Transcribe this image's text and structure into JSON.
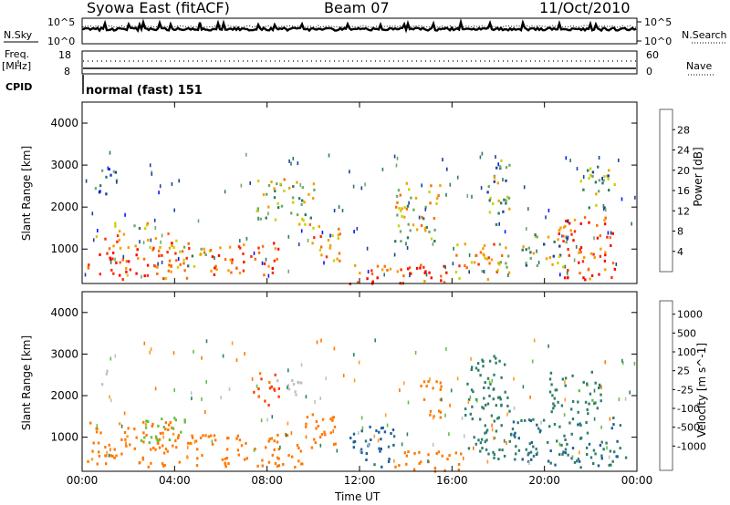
{
  "header": {
    "station": "Syowa East (fitACF)",
    "beam": "Beam 07",
    "date": "11/Oct/2010"
  },
  "top_panels": {
    "nsky_label": "N.Sky",
    "nsearch_label": "N.Search",
    "log_top_label": "10^5",
    "log_bottom_label": "10^0",
    "freq_label_line1": "Freq.",
    "freq_label_line2": "[MHz]",
    "freq_ticks": [
      "18",
      "8"
    ],
    "nave_label": "Nave",
    "nave_ticks": [
      "60",
      "0"
    ],
    "cpid_label": "CPID",
    "cpid_value": "normal (fast) 151"
  },
  "colors": {
    "power_scale": [
      "#0018ff",
      "#1e3f9e",
      "#2f7a62",
      "#6fa96a",
      "#c8d200",
      "#f2a000",
      "#ff6a00",
      "#ff2a00",
      "#ff0000"
    ],
    "velocity_scale": [
      "#1434a4",
      "#1e5fa0",
      "#2f7e6a",
      "#60c040",
      "#c0c0c0",
      "#ff9a20",
      "#ff7800",
      "#ff3c00",
      "#e00000"
    ]
  },
  "chart_data": [
    {
      "type": "heatmap",
      "panel": "power",
      "ylabel": "Slant Range [km]",
      "ylim": [
        180,
        4500
      ],
      "yticks": [
        "1000",
        "2000",
        "3000",
        "4000"
      ],
      "xticks": [
        "00:00",
        "04:00",
        "08:00",
        "12:00",
        "16:00",
        "20:00",
        "00:00"
      ],
      "colorbar_label": "Power [dB]",
      "colorbar_ticks": [
        "28",
        "24",
        "20",
        "16",
        "12",
        "8",
        "4"
      ],
      "regions": [
        {
          "t": [
            0.2,
            4.6
          ],
          "r": [
            300,
            1400
          ],
          "v": 22
        },
        {
          "t": [
            0.5,
            1.5
          ],
          "r": [
            2300,
            3000
          ],
          "v": 8
        },
        {
          "t": [
            1.2,
            2.8
          ],
          "r": [
            1400,
            1700
          ],
          "v": 16
        },
        {
          "t": [
            4.2,
            5.5
          ],
          "r": [
            600,
            1200
          ],
          "v": 14
        },
        {
          "t": [
            5.5,
            8.5
          ],
          "r": [
            400,
            1200
          ],
          "v": 24
        },
        {
          "t": [
            7.5,
            10.0
          ],
          "r": [
            1600,
            2700
          ],
          "v": 14
        },
        {
          "t": [
            9.8,
            11.2
          ],
          "r": [
            700,
            1600
          ],
          "v": 18
        },
        {
          "t": [
            11.5,
            16.0
          ],
          "r": [
            200,
            700
          ],
          "v": 26
        },
        {
          "t": [
            13.5,
            15.5
          ],
          "r": [
            1200,
            2600
          ],
          "v": 16
        },
        {
          "t": [
            16.0,
            18.5
          ],
          "r": [
            300,
            1200
          ],
          "v": 18
        },
        {
          "t": [
            17.5,
            18.5
          ],
          "r": [
            1500,
            3200
          ],
          "v": 12
        },
        {
          "t": [
            19.0,
            21.0
          ],
          "r": [
            600,
            1400
          ],
          "v": 12
        },
        {
          "t": [
            20.5,
            23.0
          ],
          "r": [
            300,
            1800
          ],
          "v": 24
        },
        {
          "t": [
            21.5,
            23.0
          ],
          "r": [
            2000,
            3000
          ],
          "v": 12
        }
      ]
    },
    {
      "type": "heatmap",
      "panel": "velocity",
      "ylabel": "Slant Range [km]",
      "ylim": [
        180,
        4500
      ],
      "yticks": [
        "1000",
        "2000",
        "3000",
        "4000"
      ],
      "xticks": [
        "00:00",
        "04:00",
        "08:00",
        "12:00",
        "16:00",
        "20:00",
        "00:00"
      ],
      "xlabel": "Time UT",
      "colorbar_label": "Velocity [m s^-1]",
      "colorbar_ticks": [
        "1000",
        "500",
        "100",
        "25",
        "-25",
        "-100",
        "-500",
        "-1000"
      ],
      "regions": [
        {
          "t": [
            0.2,
            4.6
          ],
          "r": [
            300,
            1400
          ],
          "v": -150
        },
        {
          "t": [
            0.8,
            1.2
          ],
          "r": [
            2300,
            2800
          ],
          "v": 0
        },
        {
          "t": [
            2.5,
            4.5
          ],
          "r": [
            900,
            1500
          ],
          "v": 60
        },
        {
          "t": [
            4.5,
            9.5
          ],
          "r": [
            300,
            1100
          ],
          "v": -250
        },
        {
          "t": [
            7.3,
            8.5
          ],
          "r": [
            1800,
            2600
          ],
          "v": -600
        },
        {
          "t": [
            8.0,
            9.5
          ],
          "r": [
            2000,
            2400
          ],
          "v": 0
        },
        {
          "t": [
            9.5,
            11.0
          ],
          "r": [
            700,
            1600
          ],
          "v": -200
        },
        {
          "t": [
            11.5,
            13.5
          ],
          "r": [
            300,
            1300
          ],
          "v": 700
        },
        {
          "t": [
            13.5,
            16.5
          ],
          "r": [
            200,
            700
          ],
          "v": -200
        },
        {
          "t": [
            14.5,
            15.5
          ],
          "r": [
            1400,
            2400
          ],
          "v": -200
        },
        {
          "t": [
            16.5,
            18.5
          ],
          "r": [
            500,
            3000
          ],
          "v": 300
        },
        {
          "t": [
            18.5,
            23.5
          ],
          "r": [
            300,
            1500
          ],
          "v": 400
        },
        {
          "t": [
            20.0,
            22.5
          ],
          "r": [
            1600,
            2600
          ],
          "v": 150
        }
      ]
    }
  ]
}
